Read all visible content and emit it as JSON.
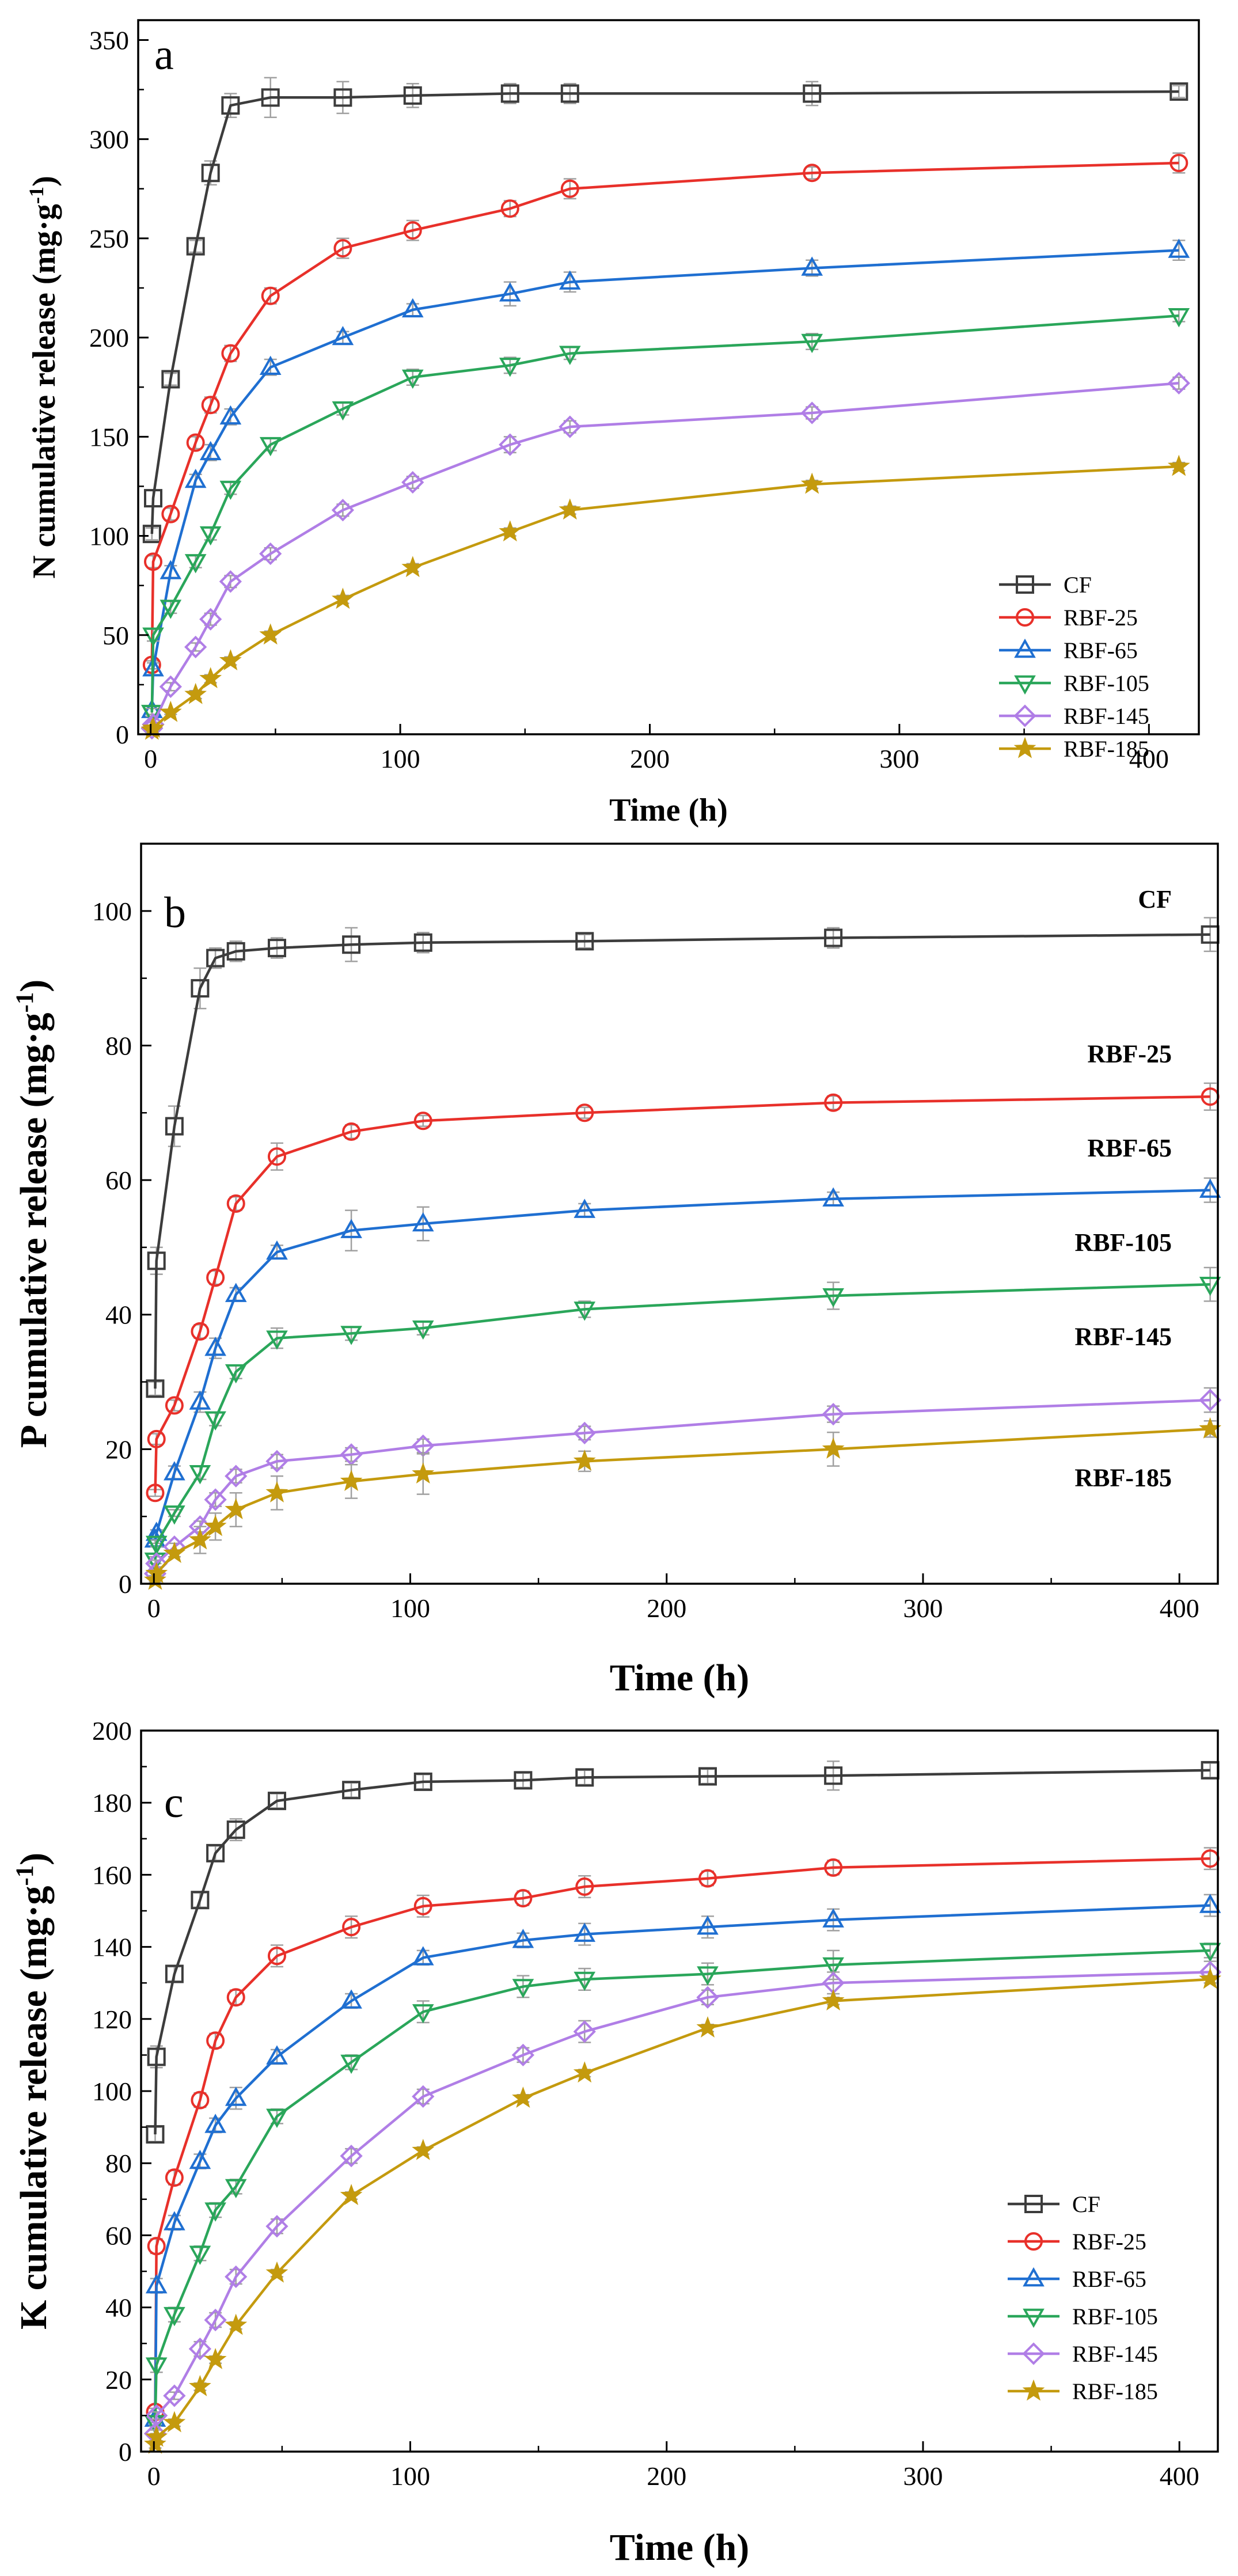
{
  "colors": {
    "CF": "#3c3c3c",
    "RBF-25": "#e8302a",
    "RBF-65": "#1f6fd1",
    "RBF-105": "#2aa65a",
    "RBF-145": "#b07ee6",
    "RBF-185": "#c49a0e"
  },
  "markers": {
    "CF": "square",
    "RBF-25": "circle",
    "RBF-65": "triangle-up",
    "RBF-105": "triangle-down",
    "RBF-145": "diamond",
    "RBF-185": "star"
  },
  "chart_data": [
    {
      "type": "line",
      "panel_label": "a",
      "xlabel": "Time (h)",
      "ylabel": "N cumulative release (mg·g",
      "ylabel_sup": "-1",
      "ylabel_close": ")",
      "xlim": [
        -5,
        420
      ],
      "ylim": [
        0,
        360
      ],
      "xticks": [
        0,
        100,
        200,
        300,
        400
      ],
      "yticks": [
        0,
        50,
        100,
        150,
        200,
        250,
        300,
        350
      ],
      "legend_position": "bottom-right",
      "grid": false,
      "series": [
        {
          "name": "CF",
          "x": [
            0.5,
            1,
            8,
            18,
            24,
            32,
            48,
            77,
            105,
            144,
            168,
            265,
            412
          ],
          "y": [
            101,
            119,
            179,
            246,
            283,
            317,
            321,
            321,
            322,
            323,
            323,
            323,
            324
          ],
          "err": [
            3,
            4,
            3,
            3,
            6,
            6,
            10,
            8,
            6,
            5,
            5,
            6,
            3
          ]
        },
        {
          "name": "RBF-25",
          "x": [
            0.5,
            1,
            8,
            18,
            24,
            32,
            48,
            77,
            105,
            144,
            168,
            265,
            412
          ],
          "y": [
            35,
            87,
            111,
            147,
            166,
            192,
            221,
            245,
            254,
            265,
            275,
            283,
            288
          ],
          "err": [
            2,
            3,
            3,
            3,
            4,
            4,
            4,
            5,
            5,
            4,
            5,
            3,
            5
          ]
        },
        {
          "name": "RBF-65",
          "x": [
            0.5,
            1,
            8,
            18,
            24,
            32,
            48,
            77,
            105,
            144,
            168,
            265,
            412
          ],
          "y": [
            12,
            33,
            82,
            128,
            142,
            160,
            185,
            200,
            214,
            222,
            228,
            235,
            244
          ],
          "err": [
            2,
            3,
            3,
            3,
            4,
            4,
            4,
            3,
            3,
            6,
            5,
            4,
            5
          ]
        },
        {
          "name": "RBF-105",
          "x": [
            0.5,
            1,
            8,
            18,
            24,
            32,
            48,
            77,
            105,
            144,
            168,
            265,
            412
          ],
          "y": [
            11,
            50,
            64,
            87,
            101,
            124,
            146,
            164,
            180,
            186,
            192,
            198,
            211
          ],
          "err": [
            2,
            3,
            3,
            3,
            3,
            3,
            3,
            3,
            4,
            4,
            3,
            4,
            3
          ]
        },
        {
          "name": "RBF-145",
          "x": [
            0.5,
            1,
            8,
            18,
            24,
            32,
            48,
            77,
            105,
            144,
            168,
            265,
            412
          ],
          "y": [
            3,
            5,
            24,
            44,
            58,
            77,
            91,
            113,
            127,
            146,
            155,
            162,
            177
          ],
          "err": [
            1,
            1,
            2,
            2,
            3,
            3,
            3,
            3,
            3,
            4,
            3,
            3,
            3
          ]
        },
        {
          "name": "RBF-185",
          "x": [
            0.5,
            1,
            8,
            18,
            24,
            32,
            48,
            77,
            105,
            144,
            168,
            265,
            412
          ],
          "y": [
            2,
            3,
            11,
            20,
            28,
            37,
            50,
            68,
            84,
            102,
            113,
            126,
            135
          ],
          "err": [
            1,
            1,
            1,
            2,
            2,
            2,
            2,
            2,
            2,
            2,
            2,
            2,
            2
          ]
        }
      ]
    },
    {
      "type": "line",
      "panel_label": "b",
      "xlabel": "Time (h)",
      "ylabel": "P cumulative release (mg·g",
      "ylabel_sup": "-1",
      "ylabel_close": ")",
      "xlim": [
        -5,
        415
      ],
      "ylim": [
        0,
        110
      ],
      "xticks": [
        0,
        100,
        200,
        300,
        400
      ],
      "yticks": [
        0,
        20,
        40,
        60,
        80,
        100
      ],
      "legend_position": "inline-right",
      "grid": false,
      "inline_labels": [
        {
          "text": "CF",
          "y": 100.5
        },
        {
          "text": "RBF-25",
          "y": 77.5
        },
        {
          "text": "RBF-65",
          "y": 63.5
        },
        {
          "text": "RBF-105",
          "y": 49.5
        },
        {
          "text": "RBF-145",
          "y": 35.5
        },
        {
          "text": "RBF-185",
          "y": 14.5
        }
      ],
      "series": [
        {
          "name": "CF",
          "x": [
            0.5,
            1,
            8,
            18,
            24,
            32,
            48,
            77,
            105,
            168,
            265,
            412
          ],
          "y": [
            29,
            48,
            68,
            88.5,
            93,
            94,
            94.5,
            95,
            95.3,
            95.5,
            96,
            96.5
          ],
          "err": [
            1,
            2,
            3,
            3,
            1.5,
            1.5,
            1.5,
            2.5,
            1.5,
            1,
            1.5,
            2.5
          ]
        },
        {
          "name": "RBF-25",
          "x": [
            0.5,
            1,
            8,
            18,
            24,
            32,
            48,
            77,
            105,
            168,
            265,
            412
          ],
          "y": [
            13.5,
            21.5,
            26.5,
            37.5,
            45.5,
            56.5,
            63.5,
            67.2,
            68.8,
            70,
            71.5,
            72.4
          ],
          "err": [
            0.5,
            0.8,
            0.8,
            1,
            1,
            1,
            2,
            1,
            0.8,
            0.8,
            1,
            2
          ]
        },
        {
          "name": "RBF-65",
          "x": [
            0.5,
            1,
            8,
            18,
            24,
            32,
            48,
            77,
            105,
            168,
            265,
            412
          ],
          "y": [
            6.5,
            7.5,
            16.5,
            27,
            35,
            43,
            49.3,
            52.5,
            53.5,
            55.5,
            57.2,
            58.5
          ],
          "err": [
            0.5,
            0.5,
            1,
            1.5,
            1.5,
            1,
            1,
            3,
            2.5,
            1,
            1,
            1.8
          ]
        },
        {
          "name": "RBF-105",
          "x": [
            0.5,
            1,
            8,
            18,
            24,
            32,
            48,
            77,
            105,
            168,
            265,
            412
          ],
          "y": [
            3.5,
            6,
            10.5,
            16.5,
            24.5,
            31.5,
            36.5,
            37.2,
            38,
            40.8,
            42.8,
            44.5
          ],
          "err": [
            0.5,
            0.5,
            0.5,
            1,
            1,
            1,
            1.5,
            1,
            1,
            1.2,
            2,
            2.5
          ]
        },
        {
          "name": "RBF-145",
          "x": [
            0.5,
            1,
            8,
            18,
            24,
            32,
            48,
            77,
            105,
            168,
            265,
            412
          ],
          "y": [
            1.5,
            3,
            5.5,
            8.5,
            12.5,
            16,
            18.2,
            19.2,
            20.5,
            22.4,
            25.2,
            27.3
          ],
          "err": [
            0.3,
            0.5,
            0.5,
            0.8,
            1,
            1,
            1,
            1,
            1,
            1,
            1.2,
            1.8
          ]
        },
        {
          "name": "RBF-185",
          "x": [
            0.5,
            1,
            8,
            18,
            24,
            32,
            48,
            77,
            105,
            168,
            265,
            412
          ],
          "y": [
            0.5,
            1.5,
            4.5,
            6.5,
            8.5,
            11,
            13.5,
            15.2,
            16.3,
            18.2,
            20,
            23
          ],
          "err": [
            0.2,
            0.3,
            0.5,
            2,
            2,
            2.5,
            2.5,
            2.5,
            3,
            1.5,
            2.5,
            1.2
          ]
        }
      ]
    },
    {
      "type": "line",
      "panel_label": "c",
      "xlabel": "Time (h)",
      "ylabel": "K cumulative release (mg·g",
      "ylabel_sup": "-1",
      "ylabel_close": ")",
      "xlim": [
        -5,
        415
      ],
      "ylim": [
        0,
        200
      ],
      "xticks": [
        0,
        100,
        200,
        300,
        400
      ],
      "yticks": [
        0,
        20,
        40,
        60,
        80,
        100,
        120,
        140,
        160,
        180,
        200
      ],
      "legend_position": "bottom-right",
      "grid": false,
      "series": [
        {
          "name": "CF",
          "x": [
            0.5,
            1,
            8,
            18,
            24,
            32,
            48,
            77,
            105,
            144,
            168,
            216,
            265,
            412
          ],
          "y": [
            88,
            109.5,
            132.5,
            153,
            166,
            172.5,
            180.5,
            183.5,
            185.8,
            186.2,
            187,
            187.3,
            187.5,
            189
          ],
          "err": [
            2,
            3,
            2,
            2,
            2,
            3,
            2,
            2,
            2,
            2,
            2,
            2,
            4,
            2
          ]
        },
        {
          "name": "RBF-25",
          "x": [
            0.5,
            1,
            8,
            18,
            24,
            32,
            48,
            77,
            105,
            144,
            168,
            216,
            265,
            412
          ],
          "y": [
            11,
            57,
            76,
            97.5,
            114,
            126,
            137.5,
            145.5,
            151.3,
            153.5,
            156.7,
            159,
            162,
            164.5
          ],
          "err": [
            1,
            2,
            2,
            2,
            2,
            2,
            3,
            3,
            3,
            2,
            3,
            2,
            2,
            3
          ]
        },
        {
          "name": "RBF-65",
          "x": [
            0.5,
            1,
            8,
            18,
            24,
            32,
            48,
            77,
            105,
            144,
            168,
            216,
            265,
            412
          ],
          "y": [
            9,
            46,
            63.5,
            80.5,
            90.5,
            98,
            109.5,
            125,
            137,
            141.8,
            143.5,
            145.5,
            147.5,
            151.5
          ],
          "err": [
            1,
            2,
            2,
            2,
            2,
            3,
            2,
            2,
            2,
            2,
            3,
            3,
            3,
            3
          ]
        },
        {
          "name": "RBF-105",
          "x": [
            0.5,
            1,
            8,
            18,
            24,
            32,
            48,
            77,
            105,
            144,
            168,
            216,
            265,
            412
          ],
          "y": [
            8,
            24,
            38,
            55,
            67,
            73.5,
            93,
            108,
            122,
            129,
            131,
            132.5,
            135,
            139
          ],
          "err": [
            1,
            2,
            2,
            2,
            2,
            2,
            2,
            2,
            3,
            3,
            3,
            3,
            4,
            2
          ]
        },
        {
          "name": "RBF-145",
          "x": [
            0.5,
            1,
            8,
            18,
            24,
            32,
            48,
            77,
            105,
            144,
            168,
            216,
            265,
            412
          ],
          "y": [
            5,
            10,
            15.5,
            28.5,
            36.5,
            48.5,
            62.5,
            82,
            98.5,
            110,
            116.5,
            126,
            130,
            133
          ],
          "err": [
            1,
            1,
            1,
            2,
            2,
            2,
            2,
            2,
            2,
            2,
            3,
            2,
            3,
            3
          ]
        },
        {
          "name": "RBF-185",
          "x": [
            0.5,
            1,
            8,
            18,
            24,
            32,
            48,
            77,
            105,
            144,
            168,
            216,
            265,
            412
          ],
          "y": [
            2,
            4,
            8,
            18,
            25.5,
            35,
            49.5,
            71,
            83.5,
            98,
            105,
            117.5,
            125,
            131
          ],
          "err": [
            1,
            1,
            1,
            1,
            1,
            1,
            1,
            1,
            1,
            1,
            1,
            1,
            1,
            1
          ]
        }
      ]
    }
  ]
}
